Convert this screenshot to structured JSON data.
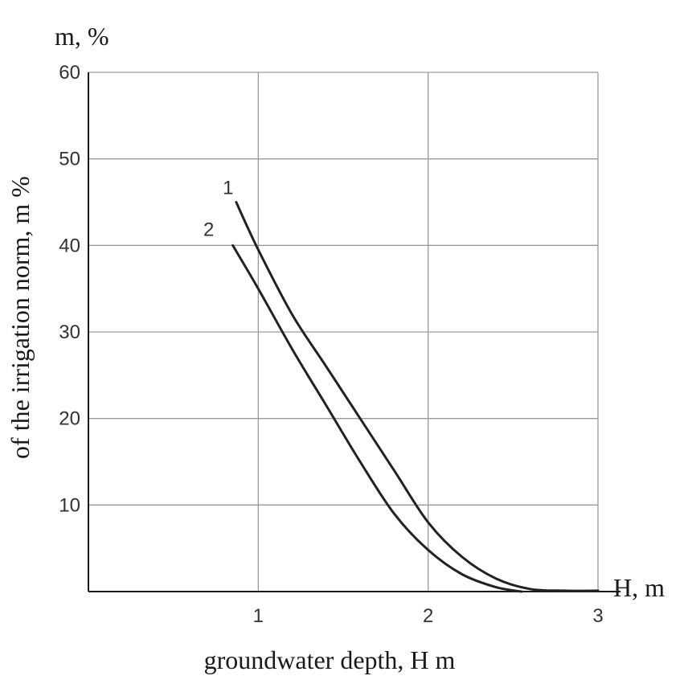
{
  "chart_data": {
    "type": "line",
    "title": "",
    "ylabel_top": "m, %",
    "ylabel": "of the irrigation norm, m %",
    "xlabel_right": "H, m",
    "xlabel": "groundwater depth, H m",
    "xlim": [
      0,
      3
    ],
    "ylim": [
      0,
      60
    ],
    "x_ticks": [
      "1",
      "2",
      "3"
    ],
    "y_ticks": [
      "10",
      "20",
      "30",
      "40",
      "50",
      "60"
    ],
    "grid": true,
    "legend": "inline-numbers",
    "colors": {
      "line": "#222222",
      "grid": "#9a9a9a",
      "axis": "#1a1a1a"
    },
    "series": [
      {
        "name": "1",
        "x": [
          0.87,
          1.0,
          1.2,
          1.4,
          1.6,
          1.8,
          2.0,
          2.2,
          2.4,
          2.6,
          2.8,
          3.0
        ],
        "y": [
          45,
          39.5,
          32,
          26,
          20,
          14,
          8,
          4,
          1.5,
          0.3,
          0.1,
          0.1
        ]
      },
      {
        "name": "2",
        "x": [
          0.85,
          1.0,
          1.2,
          1.4,
          1.6,
          1.8,
          2.0,
          2.2,
          2.4,
          2.55
        ],
        "y": [
          40,
          35,
          28,
          21.5,
          15,
          9,
          4.8,
          2,
          0.5,
          0
        ]
      }
    ]
  }
}
